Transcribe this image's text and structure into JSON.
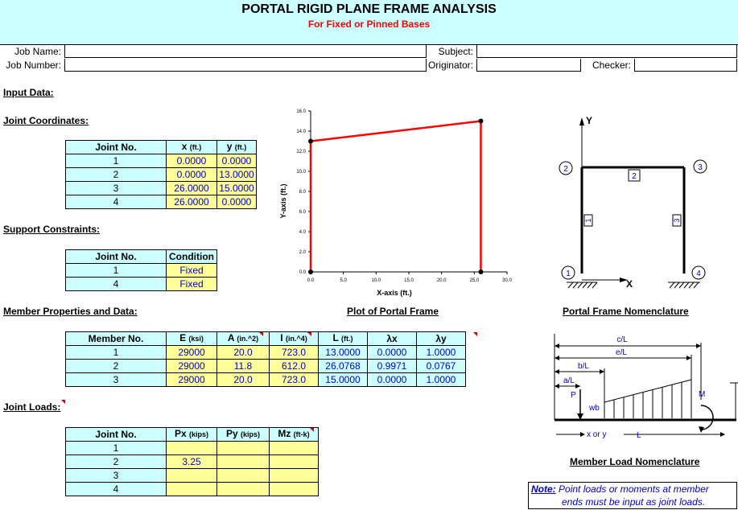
{
  "header": {
    "title": "PORTAL RIGID PLANE FRAME ANALYSIS",
    "subtitle": "For Fixed or Pinned Bases",
    "job_name_label": "Job Name:",
    "job_number_label": "Job Number:",
    "subject_label": "Subject:",
    "originator_label": "Originator:",
    "checker_label": "Checker:"
  },
  "sections": {
    "input_data": "Input Data:",
    "joint_coordinates": "Joint Coordinates:",
    "support_constraints": "Support Constraints:",
    "member_properties": "Member Properties and Data:",
    "joint_loads": "Joint Loads:",
    "plot_title": "Plot of Portal Frame",
    "nomenclature_title": "Portal Frame Nomenclature",
    "member_load_title": "Member Load Nomenclature"
  },
  "joint_coords": {
    "headers": [
      "Joint No.",
      "x",
      "(ft.)",
      "y",
      "(ft.)"
    ],
    "rows": [
      {
        "joint": "1",
        "x": "0.0000",
        "y": "0.0000"
      },
      {
        "joint": "2",
        "x": "0.0000",
        "y": "13.0000"
      },
      {
        "joint": "3",
        "x": "26.0000",
        "y": "15.0000"
      },
      {
        "joint": "4",
        "x": "26.0000",
        "y": "0.0000"
      }
    ]
  },
  "supports": {
    "headers": [
      "Joint No.",
      "Condition"
    ],
    "rows": [
      {
        "joint": "1",
        "condition": "Fixed"
      },
      {
        "joint": "4",
        "condition": "Fixed"
      }
    ]
  },
  "members": {
    "headers": [
      "Member No.",
      "E",
      "(ksi)",
      "A",
      "(in.^2)",
      "I",
      "(in.^4)",
      "L",
      "(ft.)",
      "λx",
      "λy"
    ],
    "rows": [
      {
        "member": "1",
        "E": "29000",
        "A": "20.0",
        "I": "723.0",
        "L": "13.0000",
        "lx": "0.0000",
        "ly": "1.0000"
      },
      {
        "member": "2",
        "E": "29000",
        "A": "11.8",
        "I": "612.0",
        "L": "26.0768",
        "lx": "0.9971",
        "ly": "0.0767"
      },
      {
        "member": "3",
        "E": "29000",
        "A": "20.0",
        "I": "723.0",
        "L": "15.0000",
        "lx": "0.0000",
        "ly": "1.0000"
      }
    ]
  },
  "joint_loads": {
    "headers": [
      "Joint No.",
      "Px",
      "(kips)",
      "Py",
      "(kips)",
      "Mz",
      "(ft-k)"
    ],
    "rows": [
      {
        "joint": "1",
        "px": "",
        "py": "",
        "mz": ""
      },
      {
        "joint": "2",
        "px": "3.25",
        "py": "",
        "mz": ""
      },
      {
        "joint": "3",
        "px": "",
        "py": "",
        "mz": ""
      },
      {
        "joint": "4",
        "px": "",
        "py": "",
        "mz": ""
      }
    ]
  },
  "chart_data": {
    "type": "line",
    "title": "",
    "xlabel": "X-axis (ft.)",
    "ylabel": "Y-axis (ft.)",
    "xlim": [
      0,
      30
    ],
    "ylim": [
      0,
      16
    ],
    "x_ticks": [
      "0.0",
      "5.0",
      "10.0",
      "15.0",
      "20.0",
      "25.0",
      "30.0"
    ],
    "y_ticks": [
      "0.0",
      "2.0",
      "4.0",
      "6.0",
      "8.0",
      "10.0",
      "12.0",
      "14.0",
      "16.0"
    ],
    "series": [
      {
        "x": [
          0,
          0,
          26,
          26
        ],
        "y": [
          0,
          13,
          15,
          0
        ],
        "color": "#ff0000"
      }
    ]
  },
  "nomenclature": {
    "y_axis": "Y",
    "x_axis": "X",
    "joints": [
      "1",
      "2",
      "3",
      "4"
    ],
    "members": [
      "1",
      "2",
      "3"
    ]
  },
  "member_load": {
    "cL": "c/L",
    "eL": "e/L",
    "bL": "b/L",
    "aL": "a/L",
    "P": "P",
    "M": "M",
    "wb": "wb",
    "x_or_y": "x or y",
    "L": "L"
  },
  "note": {
    "label": "Note:",
    "line1": "Point loads or moments at member",
    "line2": "ends must be input as joint loads."
  }
}
